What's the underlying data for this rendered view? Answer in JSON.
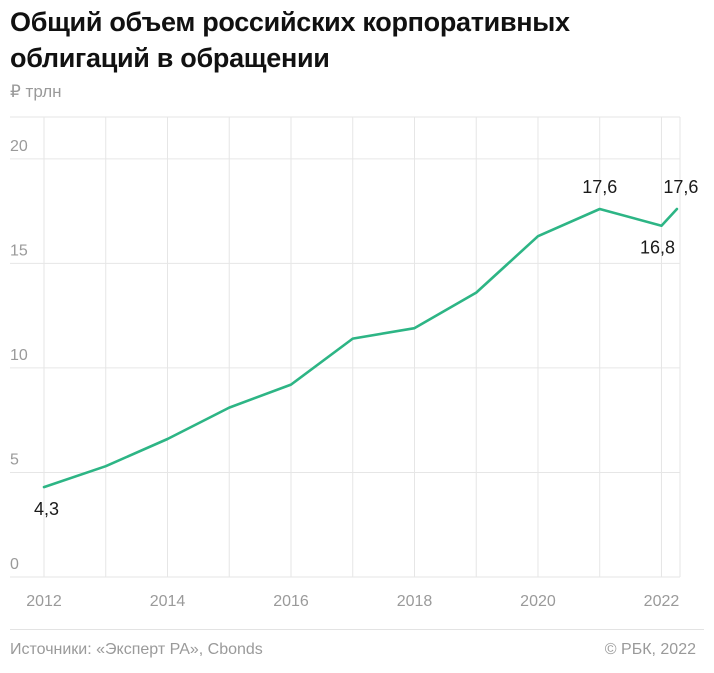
{
  "title": "Общий объем российских корпоративных облигаций в обращении",
  "unit_label": "₽ трлн",
  "footer": {
    "source": "Источники: «Эксперт РА», Cbonds",
    "copyright": "© РБК, 2022"
  },
  "chart_data": {
    "type": "line",
    "title": "Общий объем российских корпоративных облигаций в обращении",
    "ylabel": "₽ трлн",
    "xlabel": "",
    "xlim": [
      2012,
      2022.3
    ],
    "ylim": [
      0,
      22
    ],
    "yticks": [
      0,
      5,
      10,
      15,
      20
    ],
    "xtick_labels": [
      "2012",
      "2014",
      "2016",
      "2018",
      "2020",
      "2022"
    ],
    "grid": true,
    "series": [
      {
        "color": "#2db585",
        "points": [
          {
            "x": 2012,
            "y": 4.3
          },
          {
            "x": 2013,
            "y": 5.3
          },
          {
            "x": 2014,
            "y": 6.6
          },
          {
            "x": 2015,
            "y": 8.1
          },
          {
            "x": 2016,
            "y": 9.2
          },
          {
            "x": 2017,
            "y": 11.4
          },
          {
            "x": 2018,
            "y": 11.9
          },
          {
            "x": 2019,
            "y": 13.6
          },
          {
            "x": 2020,
            "y": 16.3
          },
          {
            "x": 2021,
            "y": 17.6
          },
          {
            "x": 2022,
            "y": 16.8
          },
          {
            "x": 2022.25,
            "y": 17.6
          }
        ]
      }
    ],
    "annotations": [
      {
        "x": 2012,
        "y": 4.3,
        "text": "4,3"
      },
      {
        "x": 2021,
        "y": 17.6,
        "text": "17,6"
      },
      {
        "x": 2022,
        "y": 16.8,
        "text": "16,8"
      },
      {
        "x": 2022.25,
        "y": 17.6,
        "text": "17,6"
      }
    ]
  }
}
